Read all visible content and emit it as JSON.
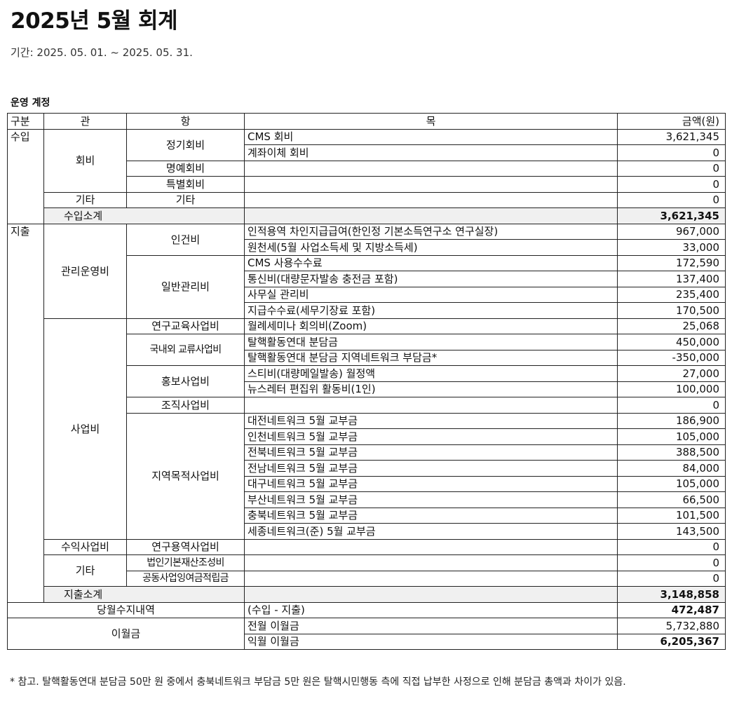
{
  "title": "2025년 5월 회계",
  "period": "기간: 2025. 05. 01. ~ 2025. 05. 31.",
  "section_title": "운영 계정",
  "headers": {
    "gubun": "구분",
    "gwan": "관",
    "hang": "항",
    "mok": "목",
    "amount": "금액(원)"
  },
  "sections": [
    {
      "name": "수입",
      "groups": [
        {
          "gwan": "회비",
          "hang": [
            {
              "name": "정기회비",
              "items": [
                {
                  "mok": "CMS 회비",
                  "amount": "3,621,345"
                },
                {
                  "mok": "계좌이체 회비",
                  "amount": "0"
                }
              ]
            },
            {
              "name": "명예회비",
              "items": [
                {
                  "mok": "",
                  "amount": "0"
                }
              ]
            },
            {
              "name": "특별회비",
              "items": [
                {
                  "mok": "",
                  "amount": "0"
                }
              ]
            }
          ]
        },
        {
          "gwan": "기타",
          "hang": [
            {
              "name": "기타",
              "items": [
                {
                  "mok": "",
                  "amount": "0"
                }
              ]
            }
          ]
        }
      ],
      "subtotal": {
        "label": "수입소계",
        "amount": "3,621,345"
      }
    },
    {
      "name": "지출",
      "groups": [
        {
          "gwan": "관리운영비",
          "hang": [
            {
              "name": "인건비",
              "items": [
                {
                  "mok": "인적용역 차인지급급여(한인정 기본소득연구소 연구실장)",
                  "amount": "967,000"
                },
                {
                  "mok": "원천세(5월 사업소득세 및 지방소득세)",
                  "amount": "33,000"
                }
              ]
            },
            {
              "name": "일반관리비",
              "items": [
                {
                  "mok": "CMS 사용수수료",
                  "amount": "172,590"
                },
                {
                  "mok": "통신비(대량문자발송 충전금 포함)",
                  "amount": "137,400"
                },
                {
                  "mok": "사무실 관리비",
                  "amount": "235,400"
                },
                {
                  "mok": "지급수수료(세무기장료 포함)",
                  "amount": "170,500"
                }
              ]
            }
          ]
        },
        {
          "gwan": "사업비",
          "hang": [
            {
              "name": "연구교육사업비",
              "items": [
                {
                  "mok": "월례세미나 회의비(Zoom)",
                  "amount": "25,068"
                }
              ]
            },
            {
              "name": "국내외 교류사업비",
              "items": [
                {
                  "mok": "탈핵활동연대 분담금",
                  "amount": "450,000"
                },
                {
                  "mok": "탈핵활동연대 분담금 지역네트워크 부담금*",
                  "amount": "-350,000"
                }
              ]
            },
            {
              "name": "홍보사업비",
              "items": [
                {
                  "mok": "스티비(대량메일발송) 월정액",
                  "amount": "27,000"
                },
                {
                  "mok": "뉴스레터 편집위 활동비(1인)",
                  "amount": "100,000"
                }
              ]
            },
            {
              "name": "조직사업비",
              "items": [
                {
                  "mok": "",
                  "amount": "0"
                }
              ]
            },
            {
              "name": "지역목적사업비",
              "items": [
                {
                  "mok": "대전네트워크 5월 교부금",
                  "amount": "186,900"
                },
                {
                  "mok": "인천네트워크 5월 교부금",
                  "amount": "105,000"
                },
                {
                  "mok": "전북네트워크 5월 교부금",
                  "amount": "388,500"
                },
                {
                  "mok": "전남네트워크 5월 교부금",
                  "amount": "84,000"
                },
                {
                  "mok": "대구네트워크 5월 교부금",
                  "amount": "105,000"
                },
                {
                  "mok": "부산네트워크 5월 교부금",
                  "amount": "66,500"
                },
                {
                  "mok": "충북네트워크 5월 교부금",
                  "amount": "101,500"
                },
                {
                  "mok": "세종네트워크(준) 5월 교부금",
                  "amount": "143,500"
                }
              ]
            }
          ]
        },
        {
          "gwan": "수익사업비",
          "hang": [
            {
              "name": "연구용역사업비",
              "items": [
                {
                  "mok": "",
                  "amount": "0"
                }
              ]
            }
          ]
        },
        {
          "gwan": "기타",
          "hang": [
            {
              "name": "법인기본재산조성비",
              "items": [
                {
                  "mok": "",
                  "amount": "0"
                }
              ]
            },
            {
              "name": "공동사업잉여금적립금",
              "items": [
                {
                  "mok": "",
                  "amount": "0"
                }
              ]
            }
          ]
        }
      ],
      "subtotal": {
        "label": "지출소계",
        "amount": "3,148,858"
      }
    }
  ],
  "balance": {
    "label": "당월수지내역",
    "mok": "(수입 - 지출)",
    "amount": "472,487"
  },
  "carryover": {
    "label": "이월금",
    "items": [
      {
        "mok": "전월 이월금",
        "amount": "5,732,880",
        "bold": false
      },
      {
        "mok": "익월 이월금",
        "amount": "6,205,367",
        "bold": true
      }
    ]
  },
  "footnote": "* 참고. 탈핵활동연대 분담금 50만 원 중에서 충북네트워크 부담금 5만 원은 탈핵시민행동 측에 직접 납부한 사정으로 인해 분담금 총액과 차이가 있음."
}
